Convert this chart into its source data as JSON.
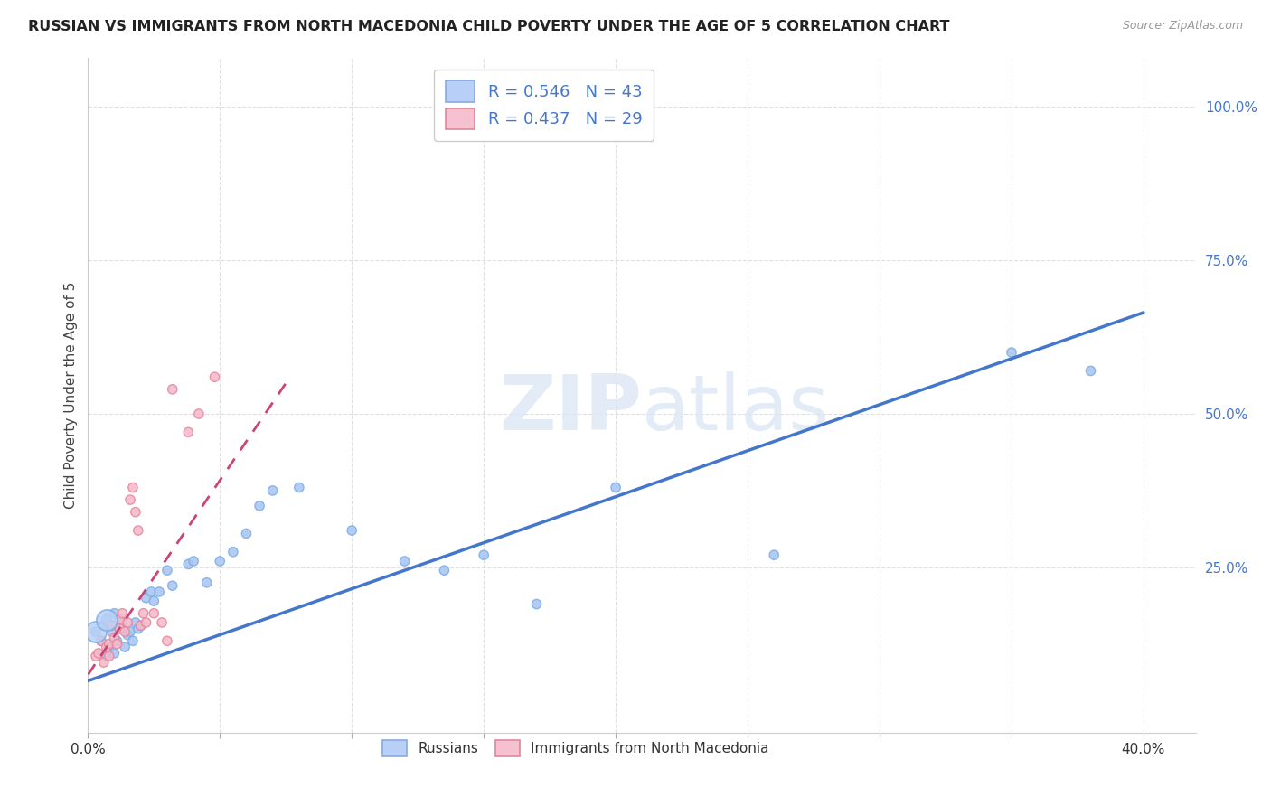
{
  "title": "RUSSIAN VS IMMIGRANTS FROM NORTH MACEDONIA CHILD POVERTY UNDER THE AGE OF 5 CORRELATION CHART",
  "source": "Source: ZipAtlas.com",
  "ylabel": "Child Poverty Under the Age of 5",
  "xlim": [
    0.0,
    0.42
  ],
  "ylim": [
    -0.02,
    1.08
  ],
  "xtick_positions": [
    0.0,
    0.05,
    0.1,
    0.15,
    0.2,
    0.25,
    0.3,
    0.35,
    0.4
  ],
  "xticklabels": [
    "0.0%",
    "",
    "",
    "",
    "",
    "",
    "",
    "",
    "40.0%"
  ],
  "ytick_positions": [
    0.0,
    0.25,
    0.5,
    0.75,
    1.0
  ],
  "yticklabels_right": [
    "",
    "25.0%",
    "50.0%",
    "75.0%",
    "100.0%"
  ],
  "grid_color": "#d8d8d8",
  "background_color": "#ffffff",
  "watermark": "ZIPatlas",
  "blue_color": "#a8c4f0",
  "blue_edge_color": "#7aaee8",
  "pink_color": "#f5b8c8",
  "pink_edge_color": "#e8849c",
  "blue_line_color": "#4477cc",
  "pink_line_color": "#cc4477",
  "legend_R1": "R = 0.546",
  "legend_N1": "N = 43",
  "legend_R2": "R = 0.437",
  "legend_N2": "N = 29",
  "russians_x": [
    0.003,
    0.005,
    0.006,
    0.007,
    0.007,
    0.008,
    0.009,
    0.01,
    0.01,
    0.011,
    0.012,
    0.013,
    0.014,
    0.015,
    0.016,
    0.017,
    0.018,
    0.019,
    0.02,
    0.022,
    0.024,
    0.025,
    0.027,
    0.03,
    0.032,
    0.038,
    0.04,
    0.045,
    0.05,
    0.055,
    0.06,
    0.065,
    0.07,
    0.08,
    0.1,
    0.12,
    0.135,
    0.15,
    0.17,
    0.2,
    0.26,
    0.35,
    0.38
  ],
  "russians_y": [
    0.145,
    0.13,
    0.155,
    0.105,
    0.165,
    0.12,
    0.145,
    0.11,
    0.175,
    0.13,
    0.15,
    0.16,
    0.12,
    0.14,
    0.145,
    0.13,
    0.16,
    0.15,
    0.155,
    0.2,
    0.21,
    0.195,
    0.21,
    0.245,
    0.22,
    0.255,
    0.26,
    0.225,
    0.26,
    0.275,
    0.305,
    0.35,
    0.375,
    0.38,
    0.31,
    0.26,
    0.245,
    0.27,
    0.19,
    0.38,
    0.27,
    0.6,
    0.57
  ],
  "russians_size": [
    55,
    55,
    55,
    55,
    55,
    55,
    55,
    55,
    55,
    55,
    55,
    55,
    55,
    55,
    55,
    55,
    55,
    55,
    55,
    55,
    55,
    55,
    55,
    55,
    55,
    55,
    55,
    55,
    55,
    55,
    55,
    55,
    55,
    55,
    55,
    55,
    55,
    55,
    55,
    55,
    55,
    55,
    55
  ],
  "russians_large": [
    0,
    4
  ],
  "russians_large_size": 280,
  "macedonia_x": [
    0.003,
    0.004,
    0.005,
    0.006,
    0.007,
    0.008,
    0.008,
    0.009,
    0.01,
    0.011,
    0.012,
    0.012,
    0.013,
    0.014,
    0.015,
    0.016,
    0.017,
    0.018,
    0.019,
    0.02,
    0.021,
    0.022,
    0.025,
    0.028,
    0.03,
    0.032,
    0.038,
    0.042,
    0.048
  ],
  "macedonia_y": [
    0.105,
    0.11,
    0.13,
    0.095,
    0.12,
    0.105,
    0.125,
    0.155,
    0.135,
    0.125,
    0.15,
    0.165,
    0.175,
    0.145,
    0.16,
    0.36,
    0.38,
    0.34,
    0.31,
    0.155,
    0.175,
    0.16,
    0.175,
    0.16,
    0.13,
    0.54,
    0.47,
    0.5,
    0.56
  ],
  "macedonia_size": [
    55,
    55,
    55,
    55,
    55,
    55,
    55,
    55,
    55,
    55,
    55,
    55,
    55,
    55,
    55,
    55,
    55,
    55,
    55,
    55,
    55,
    55,
    55,
    55,
    55,
    55,
    55,
    55,
    55
  ],
  "blue_trend_x": [
    0.0,
    0.4
  ],
  "blue_trend_y": [
    0.065,
    0.665
  ],
  "pink_trend_x": [
    0.0,
    0.075
  ],
  "pink_trend_y": [
    0.075,
    0.55
  ]
}
